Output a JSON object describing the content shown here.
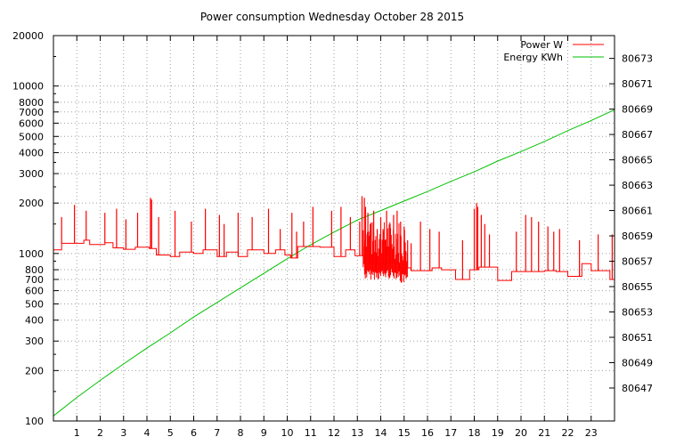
{
  "chart_data": {
    "type": "line",
    "title": "Power consumption Wednesday October 28 2015",
    "xlabel": "",
    "xlim": [
      0,
      24
    ],
    "x_ticks": [
      "1",
      "2",
      "3",
      "4",
      "5",
      "6",
      "7",
      "8",
      "9",
      "10",
      "11",
      "12",
      "13",
      "14",
      "15",
      "16",
      "17",
      "18",
      "19",
      "20",
      "21",
      "22",
      "23"
    ],
    "y_left": {
      "scale": "log",
      "lim": [
        100,
        20000
      ],
      "ticks": [
        "100",
        "200",
        "300",
        "400",
        "500",
        "600",
        "700",
        "800",
        "1000",
        "2000",
        "3000",
        "4000",
        "5000",
        "6000",
        "7000",
        "8000",
        "10000",
        "20000"
      ]
    },
    "y_right": {
      "scale": "linear",
      "lim": [
        80644.4,
        80674.8
      ],
      "ticks": [
        "80647",
        "80649",
        "80651",
        "80653",
        "80655",
        "80657",
        "80659",
        "80661",
        "80663",
        "80665",
        "80667",
        "80669",
        "80671",
        "80673"
      ]
    },
    "grid": true,
    "legend_position": "top-right",
    "series": [
      {
        "name": "Power W",
        "axis": "left",
        "color": "#ff0000",
        "baseline": [
          [
            0.0,
            1050
          ],
          [
            0.35,
            1050
          ],
          [
            0.35,
            1150
          ],
          [
            1.3,
            1150
          ],
          [
            1.3,
            1200
          ],
          [
            1.55,
            1200
          ],
          [
            1.55,
            1130
          ],
          [
            2.2,
            1130
          ],
          [
            2.2,
            1160
          ],
          [
            2.55,
            1160
          ],
          [
            2.55,
            1080
          ],
          [
            3.0,
            1080
          ],
          [
            3.0,
            1060
          ],
          [
            3.5,
            1060
          ],
          [
            3.5,
            1090
          ],
          [
            4.1,
            1090
          ],
          [
            4.1,
            1070
          ],
          [
            4.4,
            1070
          ],
          [
            4.4,
            980
          ],
          [
            5.0,
            980
          ],
          [
            5.0,
            960
          ],
          [
            5.4,
            960
          ],
          [
            5.4,
            1020
          ],
          [
            6.0,
            1020
          ],
          [
            6.0,
            1000
          ],
          [
            6.4,
            1000
          ],
          [
            6.4,
            1050
          ],
          [
            7.0,
            1050
          ],
          [
            7.0,
            960
          ],
          [
            7.4,
            960
          ],
          [
            7.4,
            1020
          ],
          [
            7.9,
            1020
          ],
          [
            7.9,
            960
          ],
          [
            8.3,
            960
          ],
          [
            8.3,
            1050
          ],
          [
            9.0,
            1050
          ],
          [
            9.0,
            1000
          ],
          [
            9.5,
            1000
          ],
          [
            9.5,
            1050
          ],
          [
            9.9,
            1050
          ],
          [
            9.9,
            980
          ],
          [
            10.15,
            980
          ],
          [
            10.15,
            940
          ],
          [
            10.45,
            940
          ],
          [
            10.45,
            1100
          ],
          [
            11.0,
            1100
          ],
          [
            11.0,
            1100
          ],
          [
            11.4,
            1100
          ],
          [
            11.4,
            1090
          ],
          [
            12.0,
            1090
          ],
          [
            12.0,
            960
          ],
          [
            12.5,
            960
          ],
          [
            12.5,
            1050
          ],
          [
            12.9,
            1050
          ],
          [
            12.9,
            970
          ],
          [
            13.3,
            970
          ],
          [
            13.3,
            870
          ],
          [
            14.2,
            870
          ],
          [
            14.2,
            880
          ],
          [
            14.8,
            880
          ],
          [
            14.8,
            820
          ],
          [
            15.3,
            820
          ],
          [
            15.3,
            790
          ],
          [
            16.2,
            790
          ],
          [
            16.2,
            820
          ],
          [
            16.6,
            820
          ],
          [
            16.6,
            800
          ],
          [
            17.2,
            800
          ],
          [
            17.2,
            700
          ],
          [
            17.8,
            700
          ],
          [
            17.8,
            800
          ],
          [
            18.2,
            800
          ],
          [
            18.2,
            830
          ],
          [
            19.0,
            830
          ],
          [
            19.0,
            690
          ],
          [
            19.6,
            690
          ],
          [
            19.6,
            780
          ],
          [
            20.3,
            780
          ],
          [
            20.3,
            780
          ],
          [
            21.0,
            780
          ],
          [
            21.0,
            790
          ],
          [
            21.5,
            790
          ],
          [
            21.5,
            780
          ],
          [
            22.0,
            780
          ],
          [
            22.0,
            730
          ],
          [
            22.6,
            730
          ],
          [
            22.6,
            870
          ],
          [
            23.0,
            870
          ],
          [
            23.0,
            790
          ],
          [
            23.8,
            790
          ],
          [
            23.8,
            700
          ],
          [
            24.0,
            700
          ]
        ],
        "spikes": [
          [
            0.35,
            1650
          ],
          [
            0.9,
            1950
          ],
          [
            1.4,
            1800
          ],
          [
            2.2,
            1750
          ],
          [
            2.7,
            1850
          ],
          [
            3.1,
            1600
          ],
          [
            3.6,
            1750
          ],
          [
            4.15,
            2150
          ],
          [
            4.2,
            2100
          ],
          [
            4.5,
            1650
          ],
          [
            5.2,
            1800
          ],
          [
            5.9,
            1550
          ],
          [
            6.5,
            1850
          ],
          [
            7.1,
            1700
          ],
          [
            7.3,
            1500
          ],
          [
            7.9,
            1750
          ],
          [
            8.5,
            1650
          ],
          [
            9.2,
            1850
          ],
          [
            9.7,
            1400
          ],
          [
            10.2,
            1750
          ],
          [
            10.4,
            1350
          ],
          [
            10.7,
            1550
          ],
          [
            11.1,
            1900
          ],
          [
            11.9,
            1800
          ],
          [
            12.3,
            1900
          ],
          [
            12.7,
            1650
          ],
          [
            13.1,
            1550
          ],
          [
            13.2,
            2200
          ],
          [
            13.3,
            2150
          ],
          [
            13.35,
            1900
          ],
          [
            13.45,
            1750
          ],
          [
            13.55,
            1500
          ],
          [
            13.7,
            1800
          ],
          [
            13.85,
            1400
          ],
          [
            14.0,
            1650
          ],
          [
            14.1,
            1400
          ],
          [
            14.25,
            1800
          ],
          [
            14.4,
            1500
          ],
          [
            14.55,
            1700
          ],
          [
            14.7,
            1800
          ],
          [
            14.85,
            1550
          ],
          [
            15.0,
            1450
          ],
          [
            15.15,
            1200
          ],
          [
            15.3,
            1150
          ],
          [
            15.7,
            1550
          ],
          [
            16.1,
            1400
          ],
          [
            16.5,
            1350
          ],
          [
            17.5,
            1200
          ],
          [
            18.0,
            1850
          ],
          [
            18.1,
            2000
          ],
          [
            18.15,
            1900
          ],
          [
            18.3,
            1700
          ],
          [
            18.45,
            1500
          ],
          [
            18.65,
            1300
          ],
          [
            19.8,
            1350
          ],
          [
            20.2,
            1700
          ],
          [
            20.45,
            1650
          ],
          [
            20.75,
            1550
          ],
          [
            21.15,
            1450
          ],
          [
            21.4,
            1350
          ],
          [
            21.65,
            1400
          ],
          [
            22.5,
            1200
          ],
          [
            23.3,
            1300
          ],
          [
            23.9,
            1300
          ]
        ],
        "heavy_noise_range": [
          13.25,
          15.15
        ]
      },
      {
        "name": "Energy KWh",
        "axis": "right",
        "color": "#00c000",
        "points": [
          [
            0,
            80644.8
          ],
          [
            1,
            80646.25
          ],
          [
            2,
            80647.6
          ],
          [
            3,
            80648.9
          ],
          [
            4,
            80650.15
          ],
          [
            5,
            80651.35
          ],
          [
            6,
            80652.6
          ],
          [
            7,
            80653.75
          ],
          [
            8,
            80654.9
          ],
          [
            9,
            80656.05
          ],
          [
            10,
            80657.2
          ],
          [
            11,
            80658.3
          ],
          [
            12,
            80659.3
          ],
          [
            13,
            80660.25
          ],
          [
            14,
            80661.0
          ],
          [
            15,
            80661.75
          ],
          [
            16,
            80662.5
          ],
          [
            17,
            80663.3
          ],
          [
            18,
            80664.05
          ],
          [
            19,
            80664.9
          ],
          [
            20,
            80665.65
          ],
          [
            21,
            80666.45
          ],
          [
            22,
            80667.3
          ],
          [
            23,
            80668.1
          ],
          [
            24,
            80668.95
          ]
        ]
      }
    ]
  }
}
